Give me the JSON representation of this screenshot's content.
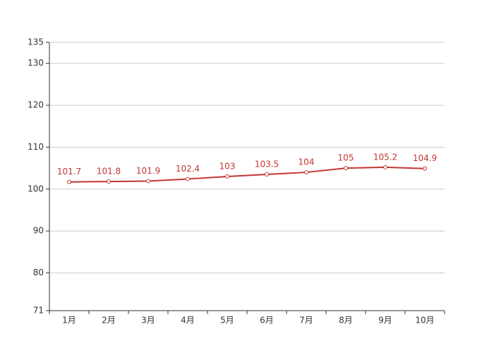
{
  "chart_data": {
    "type": "line",
    "categories": [
      "1月",
      "2月",
      "3月",
      "4月",
      "5月",
      "6月",
      "7月",
      "8月",
      "9月",
      "10月"
    ],
    "series": [
      {
        "color": "#c23531",
        "values": [
          101.7,
          101.8,
          101.9,
          102.4,
          103,
          103.5,
          104,
          105,
          105.2,
          104.9
        ]
      }
    ],
    "ylim": [
      71,
      135
    ],
    "yticks": [
      71,
      80,
      90,
      100,
      110,
      120,
      130,
      135
    ],
    "grid": true
  }
}
